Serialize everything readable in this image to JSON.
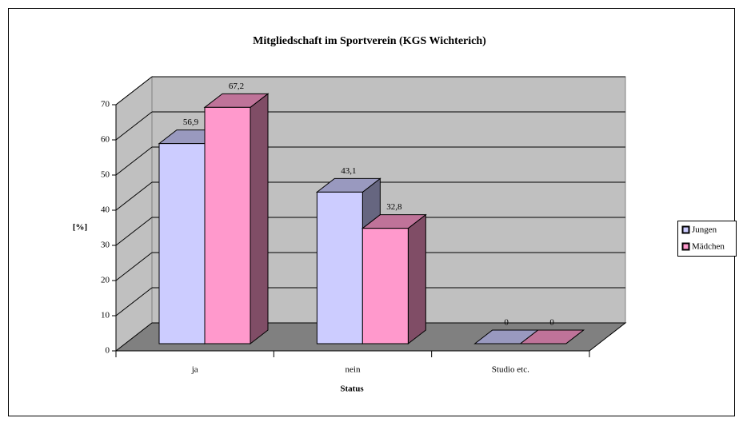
{
  "chart_data": {
    "type": "bar3d",
    "title": "Mitgliedschaft im Sportverein (KGS Wichterich)",
    "categories": [
      "ja",
      "nein",
      "Studio etc."
    ],
    "series": [
      {
        "name": "Jungen",
        "color": "#ccccff",
        "values": [
          56.9,
          43.1,
          0
        ],
        "value_labels": [
          "56,9",
          "43,1",
          "0"
        ]
      },
      {
        "name": "Mädchen",
        "color": "#ff99cc",
        "values": [
          67.2,
          32.8,
          0
        ],
        "value_labels": [
          "67,2",
          "32,8",
          "0"
        ]
      }
    ],
    "y_label": "[%]",
    "x_label": "Status",
    "ylim": [
      0,
      70
    ],
    "yticks": [
      0,
      10,
      20,
      30,
      40,
      50,
      60,
      70
    ],
    "grid": true,
    "legend": "right"
  }
}
